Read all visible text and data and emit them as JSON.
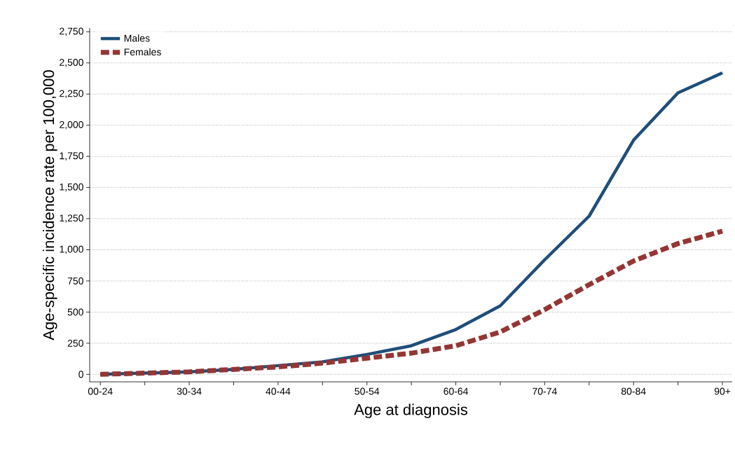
{
  "chart_data": {
    "type": "line",
    "xlabel": "Age at diagnosis",
    "ylabel": "Age-specific incidence rate per 100,000",
    "categories": [
      "00-24",
      null,
      "30-34",
      null,
      "40-44",
      null,
      "50-54",
      null,
      "60-64",
      null,
      "70-74",
      null,
      "80-84",
      null,
      "90+"
    ],
    "series": [
      {
        "name": "Males",
        "color": "#1f4e79",
        "line_style": "solid",
        "values": [
          0,
          10,
          20,
          40,
          70,
          100,
          160,
          230,
          360,
          550,
          920,
          1270,
          1880,
          2260,
          2420
        ]
      },
      {
        "name": "Females",
        "color": "#943634",
        "line_style": "dashed",
        "values": [
          0,
          10,
          20,
          40,
          60,
          90,
          130,
          170,
          230,
          340,
          520,
          720,
          910,
          1050,
          1150
        ]
      }
    ],
    "ylim": [
      -60,
      2780
    ],
    "yticks": [
      0,
      250,
      500,
      750,
      {
        "value": 1000,
        "label": "1,000"
      },
      {
        "value": 1250,
        "label": "1,250"
      },
      {
        "value": 1500,
        "label": "1,500"
      },
      {
        "value": 1750,
        "label": "1,750"
      },
      {
        "value": 2000,
        "label": "2,000"
      },
      {
        "value": 2250,
        "label": "2,250"
      },
      {
        "value": 2500,
        "label": "2,500"
      },
      {
        "value": 2750,
        "label": "2,750"
      }
    ],
    "grid": "y",
    "legend": "top left",
    "marker": "none"
  }
}
